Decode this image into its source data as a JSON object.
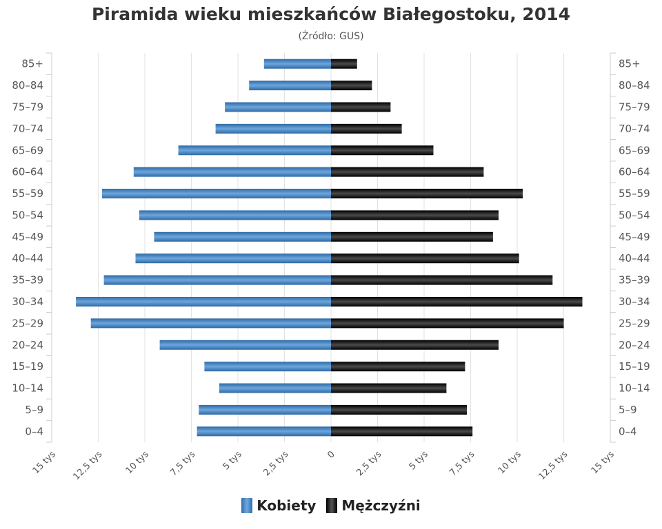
{
  "chart_data": {
    "type": "bar",
    "orientation": "horizontal",
    "layout": "population-pyramid",
    "title": "Piramida wieku mieszkańców Białegostoku, 2014",
    "subtitle": "(Źródło: GUS)",
    "categories": [
      "85+",
      "80–84",
      "75–79",
      "70–74",
      "65–69",
      "60–64",
      "55–59",
      "50–54",
      "45–49",
      "40–44",
      "35–39",
      "30–34",
      "25–29",
      "20–24",
      "15–19",
      "10–14",
      "5–9",
      "0–4"
    ],
    "series": [
      {
        "name": "Kobiety",
        "side": "left",
        "color": "#4a86c5",
        "values": [
          3.6,
          4.4,
          5.7,
          6.2,
          8.2,
          10.6,
          12.3,
          10.3,
          9.5,
          10.5,
          12.2,
          13.7,
          12.9,
          9.2,
          6.8,
          6.0,
          7.1,
          7.2
        ]
      },
      {
        "name": "Mężczyźni",
        "side": "right",
        "color": "#111111",
        "values": [
          1.4,
          2.2,
          3.2,
          3.8,
          5.5,
          8.2,
          10.3,
          9.0,
          8.7,
          10.1,
          11.9,
          13.5,
          12.5,
          9.0,
          7.2,
          6.2,
          7.3,
          7.6
        ]
      }
    ],
    "unit": "tys",
    "xlim": [
      -15,
      15
    ],
    "ticks": [
      -15,
      -12.5,
      -10,
      -7.5,
      -5,
      -2.5,
      0,
      2.5,
      5,
      7.5,
      10,
      12.5,
      15
    ],
    "tick_labels": [
      "15 tys",
      "12,5 tys",
      "10 tys",
      "7,5 tys",
      "5 tys",
      "2,5 tys",
      "0",
      "2,5 tys",
      "5 tys",
      "7,5 tys",
      "10 tys",
      "12,5 tys",
      "15 tys"
    ],
    "grid": true,
    "legend_position": "bottom-center"
  }
}
